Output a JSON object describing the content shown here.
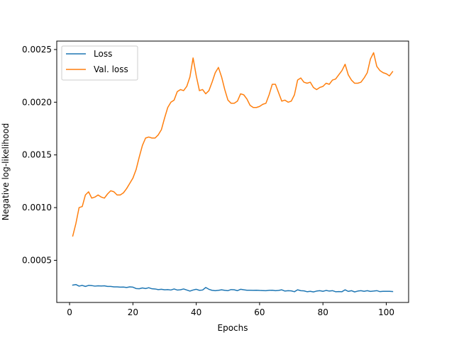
{
  "chart_data": {
    "type": "line",
    "xlabel": "Epochs",
    "ylabel": "Negative log-likelihood",
    "xlim": [
      -4.05,
      107.05
    ],
    "ylim": [
      0.0001,
      0.00258
    ],
    "xticks": [
      0,
      20,
      40,
      60,
      80,
      100
    ],
    "xtick_labels": [
      "0",
      "20",
      "40",
      "60",
      "80",
      "100"
    ],
    "yticks": [
      0.0005,
      0.001,
      0.0015,
      0.002,
      0.0025
    ],
    "ytick_labels": [
      "0.0005",
      "0.0010",
      "0.0015",
      "0.0020",
      "0.0025"
    ],
    "grid": false,
    "legend_position": "top-left",
    "series": [
      {
        "name": "Loss",
        "color": "#1f77b4",
        "x": [
          1,
          2,
          3,
          4,
          5,
          6,
          7,
          8,
          9,
          10,
          11,
          12,
          13,
          14,
          15,
          16,
          17,
          18,
          19,
          20,
          21,
          22,
          23,
          24,
          25,
          26,
          27,
          28,
          29,
          30,
          31,
          32,
          33,
          34,
          35,
          36,
          37,
          38,
          39,
          40,
          41,
          42,
          43,
          44,
          45,
          46,
          47,
          48,
          49,
          50,
          51,
          52,
          53,
          54,
          55,
          56,
          57,
          58,
          59,
          60,
          61,
          62,
          63,
          64,
          65,
          66,
          67,
          68,
          69,
          70,
          71,
          72,
          73,
          74,
          75,
          76,
          77,
          78,
          79,
          80,
          81,
          82,
          83,
          84,
          85,
          86,
          87,
          88,
          89,
          90,
          91,
          92,
          93,
          94,
          95,
          96,
          97,
          98,
          99,
          100,
          101,
          102
        ],
        "y": [
          0.000265,
          0.00027,
          0.000255,
          0.000262,
          0.000252,
          0.000262,
          0.00026,
          0.000255,
          0.000258,
          0.000256,
          0.000258,
          0.000252,
          0.000252,
          0.000248,
          0.000248,
          0.000245,
          0.000246,
          0.000242,
          0.000248,
          0.000245,
          0.000232,
          0.00023,
          0.000238,
          0.000232,
          0.00024,
          0.00023,
          0.000228,
          0.000222,
          0.000225,
          0.00022,
          0.000222,
          0.000218,
          0.000228,
          0.000218,
          0.00022,
          0.000228,
          0.000218,
          0.000208,
          0.000218,
          0.000225,
          0.000215,
          0.000218,
          0.000242,
          0.000225,
          0.000215,
          0.000212,
          0.000215,
          0.00022,
          0.000215,
          0.000212,
          0.000222,
          0.00022,
          0.000212,
          0.000225,
          0.00022,
          0.000216,
          0.000216,
          0.000215,
          0.000216,
          0.000214,
          0.000213,
          0.000212,
          0.000215,
          0.000216,
          0.000212,
          0.000214,
          0.00022,
          0.000208,
          0.000212,
          0.00021,
          0.000202,
          0.00022,
          0.000212,
          0.00021,
          0.000202,
          0.000206,
          0.0002,
          0.000208,
          0.000212,
          0.000206,
          0.000214,
          0.000208,
          0.000212,
          0.000202,
          0.000203,
          0.000202,
          0.00022,
          0.000205,
          0.000212,
          0.0002,
          0.000208,
          0.000212,
          0.000206,
          0.000212,
          0.000205,
          0.000208,
          0.000212,
          0.000203,
          0.000206,
          0.000206,
          0.000206,
          0.000204
        ]
      },
      {
        "name": "Val. loss",
        "color": "#ff7f0e",
        "x": [
          1,
          2,
          3,
          4,
          5,
          6,
          7,
          8,
          9,
          10,
          11,
          12,
          13,
          14,
          15,
          16,
          17,
          18,
          19,
          20,
          21,
          22,
          23,
          24,
          25,
          26,
          27,
          28,
          29,
          30,
          31,
          32,
          33,
          34,
          35,
          36,
          37,
          38,
          39,
          40,
          41,
          42,
          43,
          44,
          45,
          46,
          47,
          48,
          49,
          50,
          51,
          52,
          53,
          54,
          55,
          56,
          57,
          58,
          59,
          60,
          61,
          62,
          63,
          64,
          65,
          66,
          67,
          68,
          69,
          70,
          71,
          72,
          73,
          74,
          75,
          76,
          77,
          78,
          79,
          80,
          81,
          82,
          83,
          84,
          85,
          86,
          87,
          88,
          89,
          90,
          91,
          92,
          93,
          94,
          95,
          96,
          97,
          98,
          99,
          100,
          101,
          102
        ],
        "y": [
          0.00073,
          0.00085,
          0.001,
          0.00101,
          0.00112,
          0.00115,
          0.00109,
          0.0011,
          0.00112,
          0.0011,
          0.00109,
          0.00113,
          0.00116,
          0.00115,
          0.00112,
          0.00112,
          0.00114,
          0.00118,
          0.00123,
          0.00128,
          0.00136,
          0.00148,
          0.00159,
          0.00166,
          0.00167,
          0.00166,
          0.00166,
          0.00169,
          0.00174,
          0.00185,
          0.00195,
          0.002,
          0.00202,
          0.0021,
          0.00212,
          0.00211,
          0.00215,
          0.00224,
          0.00242,
          0.00225,
          0.00211,
          0.00212,
          0.00208,
          0.00211,
          0.00219,
          0.00228,
          0.00233,
          0.00224,
          0.00212,
          0.00202,
          0.00199,
          0.00199,
          0.00201,
          0.00208,
          0.00207,
          0.00203,
          0.00197,
          0.00195,
          0.00195,
          0.00196,
          0.00198,
          0.00199,
          0.00207,
          0.00217,
          0.00217,
          0.00209,
          0.00201,
          0.00202,
          0.002,
          0.00201,
          0.00207,
          0.00221,
          0.00223,
          0.00219,
          0.00218,
          0.00219,
          0.00214,
          0.00212,
          0.00214,
          0.00215,
          0.00218,
          0.00217,
          0.00221,
          0.00222,
          0.00226,
          0.0023,
          0.00236,
          0.00226,
          0.00221,
          0.00218,
          0.00218,
          0.00219,
          0.00223,
          0.00228,
          0.00241,
          0.00247,
          0.00234,
          0.0023,
          0.00228,
          0.00227,
          0.00225,
          0.00229
        ]
      }
    ]
  }
}
